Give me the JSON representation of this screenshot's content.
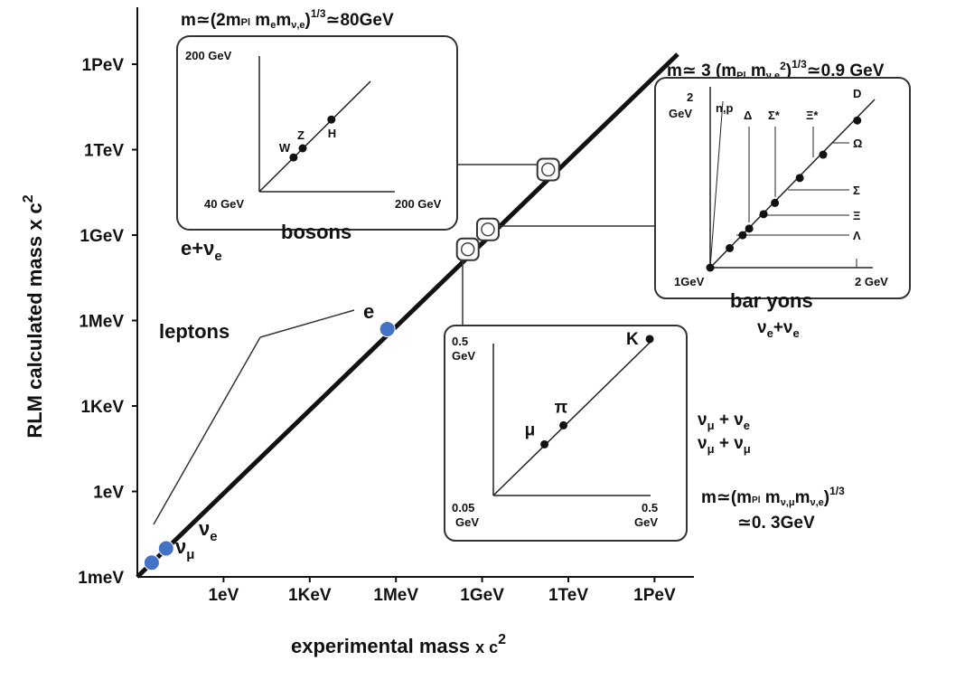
{
  "chart_data": {
    "type": "scatter",
    "xlabel": "experimental mass",
    "xlabel_suffix": "x c",
    "ylabel": "RLM calculated mass x c",
    "superscript": "2",
    "y_ticks": [
      "1meV",
      "1eV",
      "1KeV",
      "1MeV",
      "1GeV",
      "1TeV",
      "1PeV"
    ],
    "x_ticks": [
      "1eV",
      "1KeV",
      "1MeV",
      "1GeV",
      "1TeV",
      "1PeV"
    ],
    "main_points": [
      {
        "label": "ν_μ",
        "log_eV": -2.5,
        "color": "#4472c4"
      },
      {
        "label": "ν_e",
        "log_eV": -2.0,
        "color": "#4472c4"
      },
      {
        "label": "e",
        "log_eV": 5.7,
        "color": "#4472c4"
      }
    ],
    "open_markers_log_eV": [
      8.5,
      9.2,
      11.3
    ],
    "annotations": {
      "leptons": "leptons",
      "e_label": "e",
      "nu_e": "ν",
      "nu_e_sub": "e",
      "nu_mu": "ν",
      "nu_mu_sub": "μ",
      "e_plus_nue": "e+ν",
      "e_plus_nue_sub": "e",
      "boson_formula_pre": "m≃(2m",
      "boson_formula_sub1": "Pl",
      "boson_formula_mid": " m",
      "boson_formula_sub2": "e",
      "boson_formula_mid2": "m",
      "boson_formula_sub3": "ν,e",
      "boson_formula_close": ")",
      "boson_formula_exp": "1/3",
      "boson_formula_end": "≃80GeV",
      "baryon_formula_pre": "m≃ 3 (m",
      "baryon_formula_sub1": "Pl",
      "baryon_formula_mid": " m",
      "baryon_formula_sub2": "ν,e",
      "baryon_formula_sup2": "2",
      "baryon_formula_close": ")",
      "baryon_formula_exp": "1/3",
      "baryon_formula_end": "≃0.9 GeV",
      "baryon_nu": "ν",
      "baryon_nu_sub": "e",
      "baryon_plus": "+ν",
      "meson_line1": "ν",
      "meson_line1_sub1": "μ",
      "meson_line1_mid": " + ν",
      "meson_line1_sub2": "e",
      "meson_line2": "ν",
      "meson_line2_sub1": "μ",
      "meson_line2_mid": " + ν",
      "meson_line2_sub2": "μ",
      "meson_formula_pre": "m≃(m",
      "meson_formula_sub1": "Pl",
      "meson_formula_mid": " m",
      "meson_formula_sub2": "ν,μ",
      "meson_formula_mid2": "m",
      "meson_formula_sub3": "ν,e",
      "meson_formula_close": ")",
      "meson_formula_exp": "1/3",
      "meson_formula_result": "≃0. 3GeV"
    },
    "insets": {
      "bosons": {
        "title": "bosons",
        "y_top": "200 GeV",
        "origin": "40 GeV",
        "x_right": "200 GeV",
        "points": [
          {
            "label": "W",
            "value": 80.4
          },
          {
            "label": "Z",
            "value": 91.2
          },
          {
            "label": "H",
            "value": 125.1
          }
        ]
      },
      "baryons": {
        "title": "bar yons",
        "y_top": "2",
        "y_top_unit": "GeV",
        "origin": "1GeV",
        "x_right": "2 GeV",
        "labels_top": [
          "n,p",
          "Δ",
          "Σ*",
          "Ξ*",
          "D"
        ],
        "labels_right": [
          "Ω",
          "Σ",
          "Ξ",
          "Λ"
        ],
        "points": [
          1.116,
          1.193,
          1.232,
          1.318,
          1.385,
          1.533,
          1.672,
          1.875
        ]
      },
      "mesons": {
        "y_top": "0.5",
        "y_top_unit": "GeV",
        "origin": "0.05",
        "origin_unit": "GeV",
        "x_right": "0.5",
        "x_right_unit": "GeV",
        "points": [
          {
            "label": "μ",
            "value": 0.1057
          },
          {
            "label": "π",
            "value": 0.1396
          },
          {
            "label": "K",
            "value": 0.4937
          }
        ]
      }
    }
  }
}
